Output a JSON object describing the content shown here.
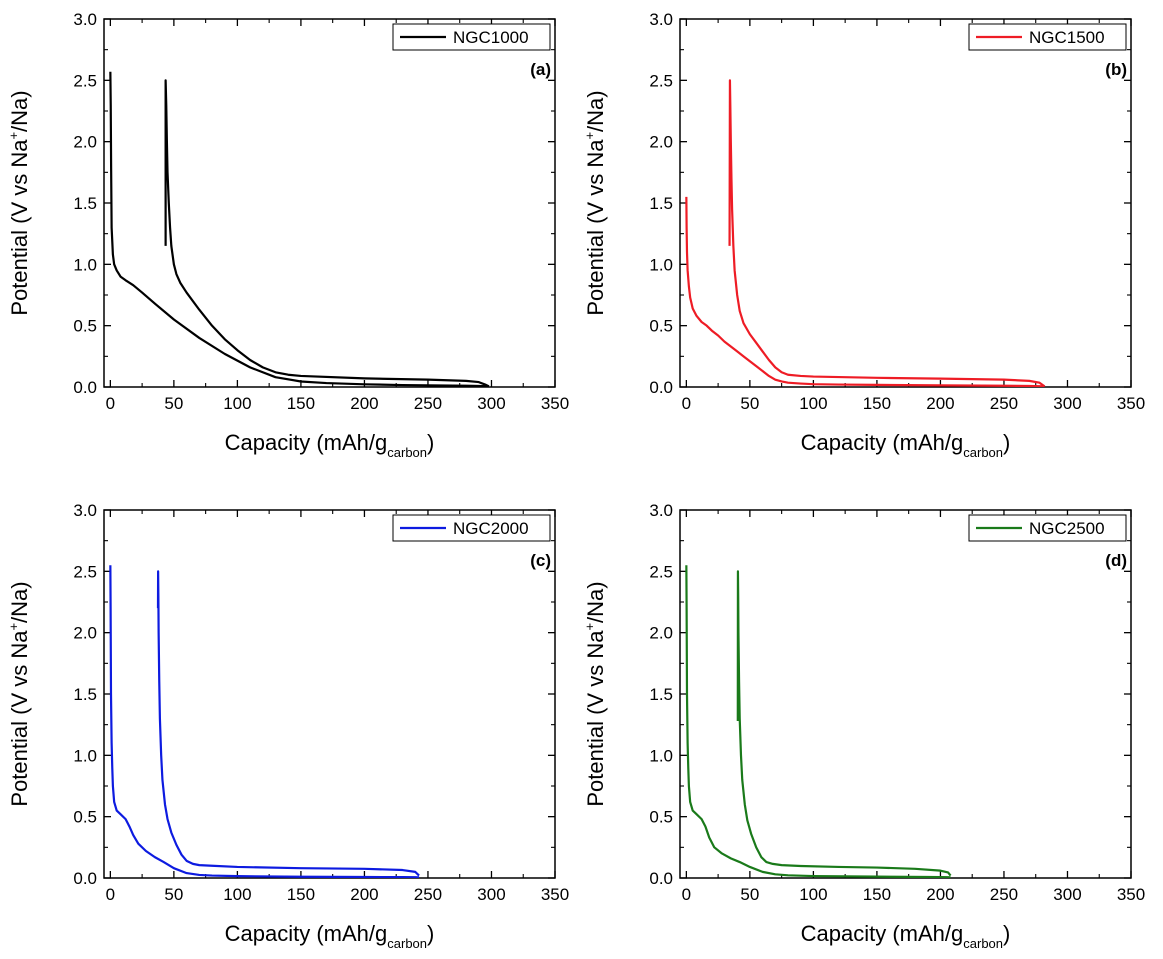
{
  "chart_data": [
    {
      "type": "line",
      "panel_label": "(a)",
      "xlabel": "Capacity (mAh/g",
      "xlabel_sub": "carbon",
      "xlabel_end": ")",
      "ylabel_pre": "Potential (V vs Na",
      "ylabel_sup": "+",
      "ylabel_post": "/Na)",
      "xlim": [
        -5,
        350
      ],
      "ylim": [
        0,
        3.0
      ],
      "xticks": [
        "0",
        "50",
        "100",
        "150",
        "200",
        "250",
        "300",
        "350"
      ],
      "yticks": [
        "0.0",
        "0.5",
        "1.0",
        "1.5",
        "2.0",
        "2.5",
        "3.0"
      ],
      "grid": false,
      "legend_position": "top-right",
      "series": [
        {
          "name": "NGC1000",
          "color": "#000000",
          "segments": [
            {
              "x": [
                0,
                0.3,
                0.6,
                1,
                2,
                3,
                5,
                8,
                12,
                18,
                25,
                35,
                50,
                70,
                90,
                110,
                130,
                150,
                170,
                200,
                230,
                260,
                280,
                290,
                296,
                298
              ],
              "y": [
                2.57,
                2.3,
                1.8,
                1.3,
                1.08,
                1.0,
                0.95,
                0.9,
                0.87,
                0.83,
                0.77,
                0.68,
                0.55,
                0.4,
                0.27,
                0.16,
                0.08,
                0.045,
                0.032,
                0.022,
                0.016,
                0.012,
                0.01,
                0.008,
                0.006,
                0.005
              ]
            },
            {
              "x": [
                43.5,
                43.5,
                44,
                44.5,
                45,
                46,
                47,
                48,
                50,
                52,
                55,
                60,
                70,
                80,
                90,
                100,
                110,
                120,
                130,
                140,
                150,
                200,
                250,
                280,
                290,
                295,
                298
              ],
              "y": [
                1.15,
                2.5,
                2.3,
                2.0,
                1.75,
                1.5,
                1.3,
                1.15,
                1.0,
                0.92,
                0.85,
                0.77,
                0.63,
                0.5,
                0.39,
                0.3,
                0.22,
                0.16,
                0.12,
                0.1,
                0.09,
                0.07,
                0.06,
                0.05,
                0.04,
                0.02,
                0.005
              ]
            }
          ]
        }
      ]
    },
    {
      "type": "line",
      "panel_label": "(b)",
      "xlabel": "Capacity (mAh/g",
      "xlabel_sub": "carbon",
      "xlabel_end": ")",
      "ylabel_pre": "Potential (V vs Na",
      "ylabel_sup": "+",
      "ylabel_post": "/Na)",
      "xlim": [
        -5,
        350
      ],
      "ylim": [
        0,
        3.0
      ],
      "xticks": [
        "0",
        "50",
        "100",
        "150",
        "200",
        "250",
        "300",
        "350"
      ],
      "yticks": [
        "0.0",
        "0.5",
        "1.0",
        "1.5",
        "2.0",
        "2.5",
        "3.0"
      ],
      "grid": false,
      "legend_position": "top-right",
      "series": [
        {
          "name": "NGC1500",
          "color": "#ee1c25",
          "segments": [
            {
              "x": [
                0,
                0.2,
                0.5,
                1,
                2,
                3,
                5,
                8,
                12,
                16,
                20,
                25,
                30,
                35,
                40,
                45,
                50,
                55,
                60,
                65,
                70,
                75,
                80,
                90,
                100,
                120,
                150,
                200,
                250,
                270,
                278,
                282
              ],
              "y": [
                1.55,
                1.3,
                1.1,
                0.95,
                0.82,
                0.73,
                0.64,
                0.58,
                0.53,
                0.5,
                0.46,
                0.42,
                0.37,
                0.33,
                0.29,
                0.25,
                0.21,
                0.17,
                0.13,
                0.09,
                0.06,
                0.045,
                0.035,
                0.028,
                0.023,
                0.02,
                0.017,
                0.013,
                0.01,
                0.008,
                0.006,
                0.005
              ]
            },
            {
              "x": [
                34,
                34.3,
                34.6,
                35,
                35.5,
                36,
                37,
                38,
                40,
                42,
                45,
                50,
                55,
                60,
                65,
                70,
                75,
                80,
                90,
                100,
                150,
                200,
                250,
                270,
                278,
                282
              ],
              "y": [
                1.15,
                2.5,
                2.3,
                2.0,
                1.7,
                1.45,
                1.15,
                0.95,
                0.75,
                0.62,
                0.52,
                0.43,
                0.36,
                0.29,
                0.22,
                0.16,
                0.12,
                0.1,
                0.09,
                0.085,
                0.075,
                0.068,
                0.06,
                0.05,
                0.035,
                0.005
              ]
            }
          ]
        }
      ]
    },
    {
      "type": "line",
      "panel_label": "(c)",
      "xlabel": "Capacity (mAh/g",
      "xlabel_sub": "carbon",
      "xlabel_end": ")",
      "ylabel_pre": "Potential (V vs Na",
      "ylabel_sup": "+",
      "ylabel_post": "/Na)",
      "xlim": [
        -5,
        350
      ],
      "ylim": [
        0,
        3.0
      ],
      "xticks": [
        "0",
        "50",
        "100",
        "150",
        "200",
        "250",
        "300",
        "350"
      ],
      "yticks": [
        "0.0",
        "0.5",
        "1.0",
        "1.5",
        "2.0",
        "2.5",
        "3.0"
      ],
      "grid": false,
      "legend_position": "top-right",
      "series": [
        {
          "name": "NGC2000",
          "color": "#0d1be0",
          "segments": [
            {
              "x": [
                0,
                0.2,
                0.5,
                1,
                1.5,
                2,
                3,
                5,
                8,
                12,
                15,
                18,
                22,
                28,
                35,
                42,
                50,
                60,
                70,
                80,
                100,
                150,
                200,
                230,
                240,
                243
              ],
              "y": [
                2.55,
                2.2,
                1.5,
                1.1,
                0.9,
                0.75,
                0.62,
                0.55,
                0.52,
                0.48,
                0.42,
                0.35,
                0.28,
                0.22,
                0.17,
                0.13,
                0.08,
                0.04,
                0.025,
                0.02,
                0.015,
                0.01,
                0.008,
                0.007,
                0.006,
                0.005
              ]
            },
            {
              "x": [
                37.5,
                37.6,
                37.8,
                38,
                38.5,
                39,
                40,
                41,
                43,
                45,
                48,
                52,
                56,
                60,
                65,
                70,
                80,
                100,
                150,
                200,
                230,
                240,
                243
              ],
              "y": [
                2.2,
                2.5,
                2.3,
                2.0,
                1.6,
                1.3,
                1.0,
                0.8,
                0.6,
                0.48,
                0.37,
                0.27,
                0.19,
                0.14,
                0.115,
                0.105,
                0.1,
                0.09,
                0.08,
                0.075,
                0.065,
                0.05,
                0.02
              ]
            }
          ]
        }
      ]
    },
    {
      "type": "line",
      "panel_label": "(d)",
      "xlabel": "Capacity (mAh/g",
      "xlabel_sub": "carbon",
      "xlabel_end": ")",
      "ylabel_pre": "Potential (V vs Na",
      "ylabel_sup": "+",
      "ylabel_post": "/Na)",
      "xlim": [
        -5,
        350
      ],
      "ylim": [
        0,
        3.0
      ],
      "xticks": [
        "0",
        "50",
        "100",
        "150",
        "200",
        "250",
        "300",
        "350"
      ],
      "yticks": [
        "0.0",
        "0.5",
        "1.0",
        "1.5",
        "2.0",
        "2.5",
        "3.0"
      ],
      "grid": false,
      "legend_position": "top-right",
      "series": [
        {
          "name": "NGC2500",
          "color": "#1a7a1a",
          "segments": [
            {
              "x": [
                0,
                0.2,
                0.5,
                1,
                1.5,
                2,
                3,
                5,
                8,
                12,
                15,
                18,
                22,
                28,
                35,
                42,
                50,
                60,
                70,
                80,
                100,
                150,
                190,
                200,
                206,
                208
              ],
              "y": [
                2.55,
                2.2,
                1.5,
                1.1,
                0.9,
                0.75,
                0.62,
                0.55,
                0.52,
                0.48,
                0.42,
                0.33,
                0.25,
                0.2,
                0.16,
                0.13,
                0.09,
                0.05,
                0.03,
                0.022,
                0.016,
                0.011,
                0.008,
                0.007,
                0.006,
                0.005
              ]
            },
            {
              "x": [
                40.5,
                40.6,
                40.8,
                41,
                41.5,
                42,
                43,
                44,
                46,
                48,
                51,
                55,
                59,
                63,
                68,
                75,
                90,
                120,
                150,
                180,
                200,
                206,
                208
              ],
              "y": [
                1.28,
                2.5,
                2.3,
                2.0,
                1.6,
                1.3,
                1.0,
                0.8,
                0.6,
                0.47,
                0.36,
                0.25,
                0.17,
                0.13,
                0.115,
                0.105,
                0.098,
                0.09,
                0.085,
                0.075,
                0.06,
                0.045,
                0.02
              ]
            }
          ]
        }
      ]
    }
  ]
}
